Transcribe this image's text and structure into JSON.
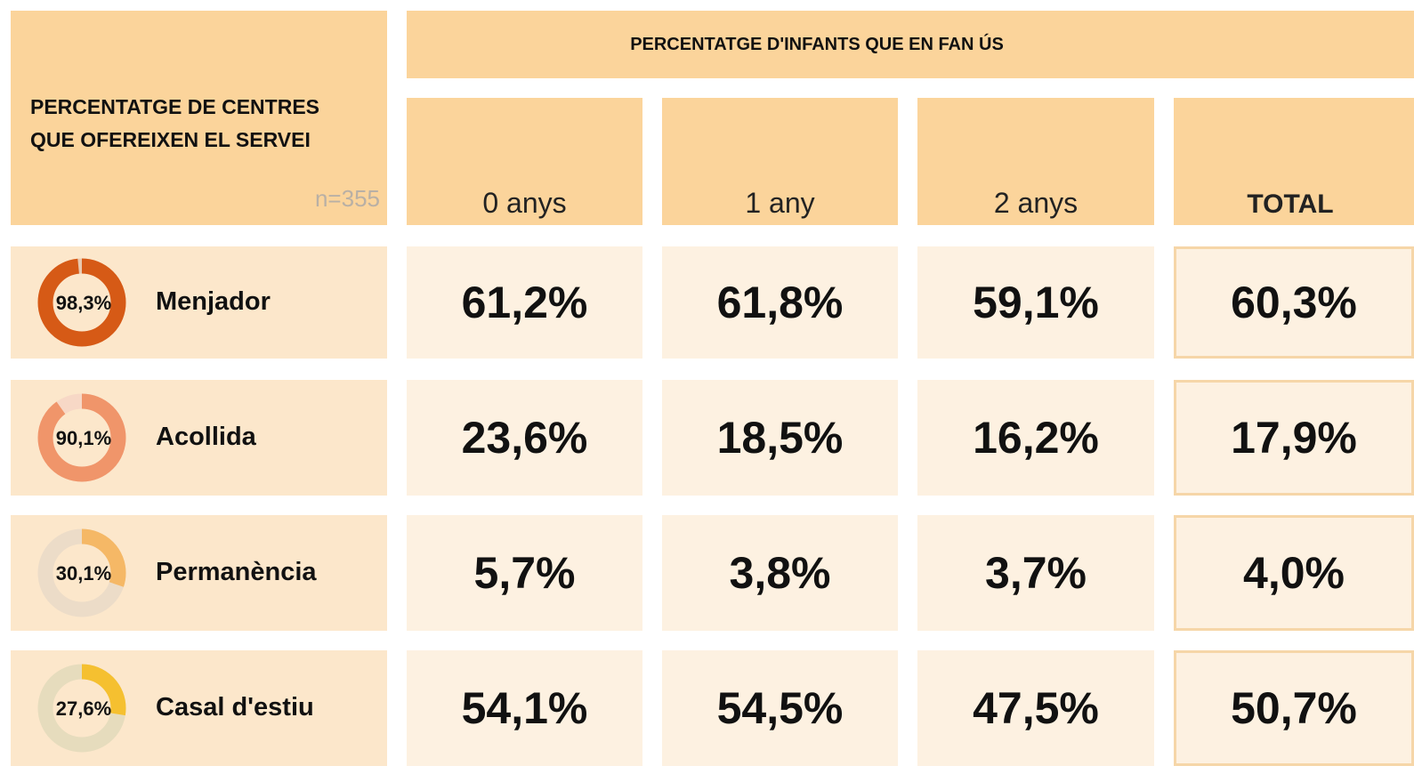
{
  "left_header": {
    "title_lines": [
      "PERCENTATGE DE CENTRES",
      "QUE OFEREIXEN EL SERVEI"
    ],
    "note": "n=355"
  },
  "top_header": "PERCENTATGE D'INFANTS QUE EN FAN ÚS",
  "columns": [
    "0 anys",
    "1 any",
    "2 anys",
    "TOTAL"
  ],
  "rows": [
    {
      "service": "Menjador",
      "centres_value": 98.3,
      "centres_label": "98,3%",
      "color": "#d65a16",
      "track": "#e8c9b0",
      "cells": [
        "61,2%",
        "61,8%",
        "59,1%",
        "60,3%"
      ]
    },
    {
      "service": "Acollida",
      "centres_value": 90.1,
      "centres_label": "90,1%",
      "color": "#f0956a",
      "track": "#f7d8c6",
      "cells": [
        "23,6%",
        "18,5%",
        "16,2%",
        "17,9%"
      ]
    },
    {
      "service": "Permanència",
      "centres_value": 30.1,
      "centres_label": "30,1%",
      "color": "#f5b866",
      "track": "#ecdcc8",
      "cells": [
        "5,7%",
        "3,8%",
        "3,7%",
        "4,0%"
      ]
    },
    {
      "service": "Casal d'estiu",
      "centres_value": 27.6,
      "centres_label": "27,6%",
      "color": "#f5c030",
      "track": "#e6dcbd",
      "cells": [
        "54,1%",
        "54,5%",
        "47,5%",
        "50,7%"
      ]
    }
  ]
}
